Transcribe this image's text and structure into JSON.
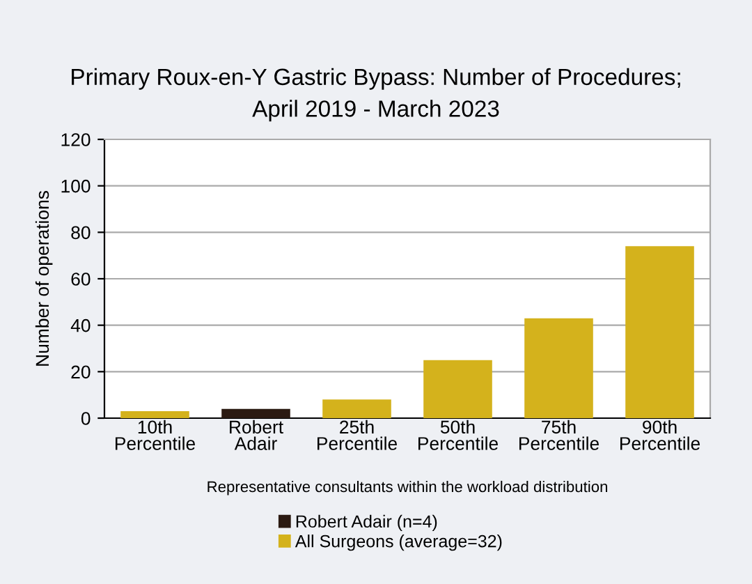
{
  "chart_data": {
    "type": "bar",
    "title": "Primary Roux-en-Y Gastric Bypass: Number of Procedures;\nApril 2019 - March 2023",
    "xlabel": "Representative consultants within the workload distribution",
    "ylabel": "Number of operations",
    "categories": [
      "10th\nPercentile",
      "Robert\nAdair",
      "25th\nPercentile",
      "50th\nPercentile",
      "75th\nPercentile",
      "90th\nPercentile"
    ],
    "series": [
      {
        "name": "Robert Adair (n=4)",
        "color": "#2b1a12",
        "values": [
          null,
          4,
          null,
          null,
          null,
          null
        ]
      },
      {
        "name": "All Surgeons (average=32)",
        "color": "#d4b21c",
        "values": [
          3,
          null,
          8,
          25,
          43,
          74
        ]
      }
    ],
    "ylim": [
      0,
      120
    ],
    "yticks": [
      0,
      20,
      40,
      60,
      80,
      100,
      120
    ],
    "grid": "y",
    "legend": "bottom"
  }
}
